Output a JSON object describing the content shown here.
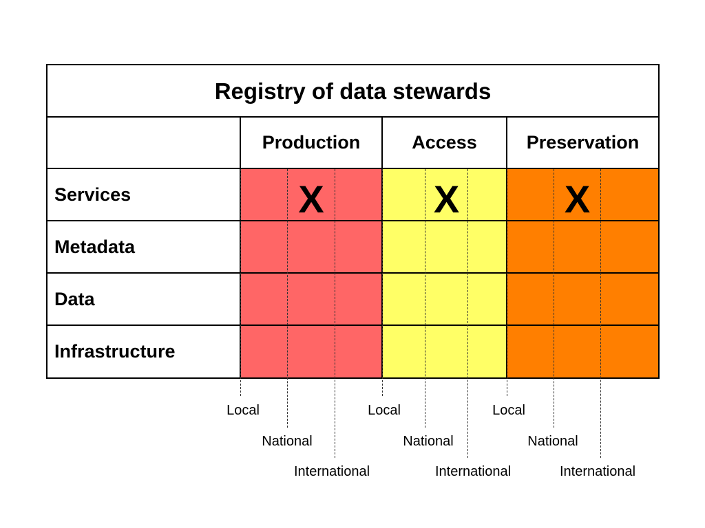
{
  "title": "Registry of data stewards",
  "columns": [
    {
      "label": "Production",
      "color": "#ff6666"
    },
    {
      "label": "Access",
      "color": "#ffff66"
    },
    {
      "label": "Preservation",
      "color": "#ff7f00"
    }
  ],
  "rows": [
    "Services",
    "Metadata",
    "Data",
    "Infrastructure"
  ],
  "mark": "X",
  "levels": [
    "Local",
    "National",
    "International"
  ],
  "marked_cells": [
    {
      "row": "Services",
      "column": "Production",
      "level": "National"
    },
    {
      "row": "Services",
      "column": "Access",
      "level": "National"
    },
    {
      "row": "Services",
      "column": "Preservation",
      "level": "National"
    }
  ]
}
